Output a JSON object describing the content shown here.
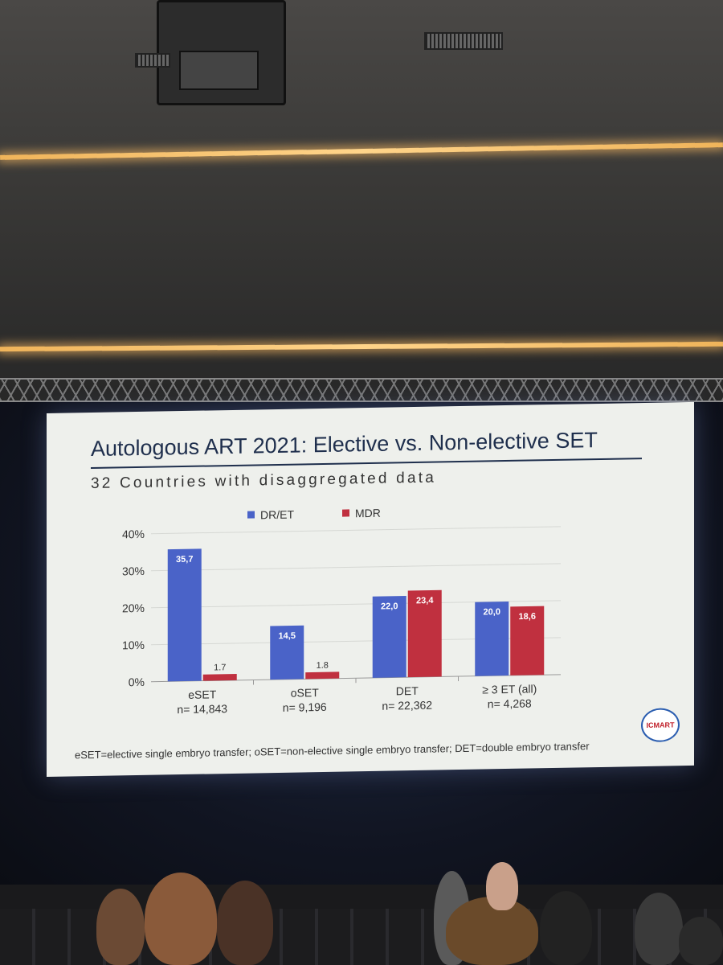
{
  "slide": {
    "title": "Autologous ART 2021: Elective vs. Non-elective SET",
    "subtitle": "32 Countries with disaggregated data",
    "footnote": "eSET=elective single embryo transfer; oSET=non-elective single embryo transfer; DET=double embryo transfer",
    "logo_text": "ICMART"
  },
  "chart_data": {
    "type": "bar",
    "categories": [
      "eSET",
      "oSET",
      "DET",
      "≥ 3 ET (all)"
    ],
    "category_n": [
      "n= 14,843",
      "n= 9,196",
      "n= 22,362",
      "n= 4,268"
    ],
    "series": [
      {
        "name": "DR/ET",
        "color": "#4a63c8",
        "values": [
          35.7,
          14.5,
          22.0,
          20.0
        ],
        "labels": [
          "35,7",
          "14,5",
          "22,0",
          "20,0"
        ]
      },
      {
        "name": "MDR",
        "color": "#c0303f",
        "values": [
          1.7,
          1.8,
          23.4,
          18.6
        ],
        "labels": [
          "1.7",
          "1.8",
          "23,4",
          "18,6"
        ]
      }
    ],
    "ylim": [
      0,
      40
    ],
    "yticks": [
      "0%",
      "10%",
      "20%",
      "30%",
      "40%"
    ],
    "grid": true,
    "legend_position": "top"
  }
}
